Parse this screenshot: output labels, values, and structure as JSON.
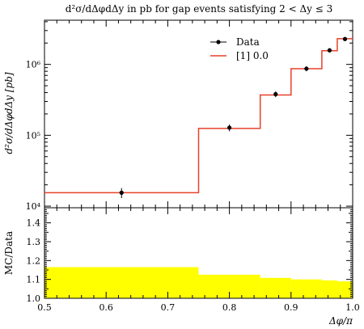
{
  "chart_data": [
    {
      "type": "line",
      "title": "d²σ/dΔφdΔy in pb for gap events satisfying 2 < Δy ≤ 3",
      "ylabel": "d²σ/dΔφdΔy [pb]",
      "xlim": [
        0.5,
        1.0
      ],
      "ylim": [
        9500,
        4200000
      ],
      "yscale": "log",
      "y_ticks": [
        10000,
        100000,
        1000000
      ],
      "y_tick_labels": [
        "10⁴",
        "10⁵",
        "10⁶"
      ],
      "legend_position": "top-right",
      "series": [
        {
          "name": "Data",
          "style": "points-with-errorbars",
          "color": "#000000",
          "x": [
            0.625,
            0.8,
            0.875,
            0.925,
            0.9625,
            0.9875
          ],
          "y": [
            15500,
            128000,
            380000,
            870000,
            1580000,
            2280000
          ],
          "yerr": [
            2500,
            14000,
            35000,
            70000,
            110000,
            150000
          ]
        },
        {
          "name": "[1] 0.0",
          "style": "histogram-step",
          "color": "#e8412a",
          "bin_edges": [
            0.5,
            0.75,
            0.85,
            0.9,
            0.95,
            0.975,
            1.0
          ],
          "values": [
            15500,
            125000,
            370000,
            870000,
            1560000,
            2300000
          ]
        }
      ]
    },
    {
      "type": "area",
      "xlabel": "Δφ/π",
      "ylabel": "MC/Data",
      "xlim": [
        0.5,
        1.0
      ],
      "ylim": [
        1.0,
        1.48
      ],
      "x_ticks": [
        0.5,
        0.6,
        0.7,
        0.8,
        0.9,
        1.0
      ],
      "x_tick_labels": [
        "0.5",
        "0.6",
        "0.7",
        "0.8",
        "0.9",
        "1.0"
      ],
      "y_ticks": [
        1.0,
        1.1,
        1.2,
        1.3,
        1.4
      ],
      "y_tick_labels": [
        "1.0",
        "1.1",
        "1.2",
        "1.3",
        "1.4"
      ],
      "band_color": "#ffff00",
      "bin_edges": [
        0.5,
        0.75,
        0.85,
        0.9,
        0.95,
        0.975,
        1.0
      ],
      "band_upper": [
        1.165,
        1.125,
        1.108,
        1.1,
        1.095,
        1.09
      ],
      "band_lower": [
        1.0,
        1.0,
        1.0,
        1.0,
        1.0,
        1.0
      ]
    }
  ]
}
